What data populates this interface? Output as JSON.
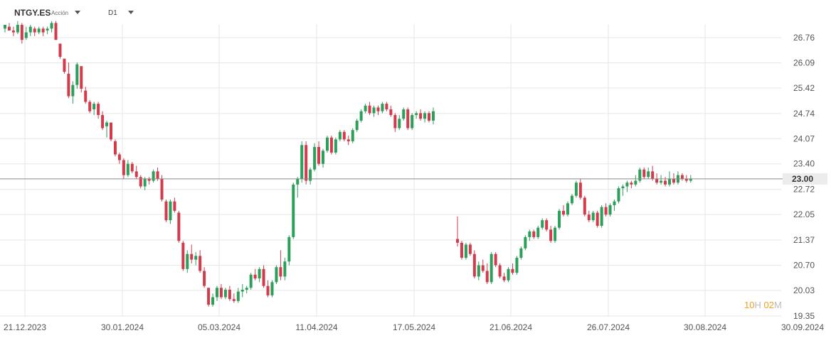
{
  "toolbar": {
    "symbol": "NTGY.ES",
    "symbol_type": "Acción",
    "timeframe": "D1"
  },
  "timer": {
    "hours": "10",
    "hours_unit": "H",
    "minutes": "02",
    "minutes_unit": "M"
  },
  "colors": {
    "up": "#2e9e5b",
    "down": "#d23b4c",
    "grid": "#e6e6e6",
    "price_line": "#8a8a8a",
    "price_tag_bg": "#ececec"
  },
  "chart_data": {
    "type": "candlestick",
    "timeframe": "D1",
    "current_price": 23.0,
    "ylim": [
      19.2,
      27.4
    ],
    "y_ticks": [
      "26.76",
      "26.09",
      "25.42",
      "24.74",
      "24.07",
      "23.40",
      "22.72",
      "22.05",
      "21.37",
      "20.70",
      "20.03",
      "19.35"
    ],
    "x_labels": [
      "21.12.2023",
      "30.01.2024",
      "05.03.2024",
      "11.04.2024",
      "17.05.2024",
      "21.06.2024",
      "26.07.2024",
      "30.08.2024",
      "30.09.2024"
    ],
    "candles": [
      [
        27.0,
        27.1,
        26.9,
        27.1
      ],
      [
        27.05,
        27.15,
        26.95,
        26.95
      ],
      [
        26.95,
        27.05,
        26.8,
        26.9
      ],
      [
        26.9,
        27.2,
        26.85,
        27.1
      ],
      [
        27.1,
        27.15,
        26.6,
        26.7
      ],
      [
        26.75,
        27.05,
        26.7,
        26.9
      ],
      [
        26.9,
        27.1,
        26.8,
        27.05
      ],
      [
        27.0,
        27.05,
        26.8,
        26.9
      ],
      [
        26.9,
        27.05,
        26.85,
        27.0
      ],
      [
        27.0,
        27.05,
        26.8,
        26.9
      ],
      [
        26.95,
        27.05,
        26.85,
        27.0
      ],
      [
        27.0,
        27.2,
        26.9,
        27.15
      ],
      [
        27.15,
        27.2,
        26.7,
        26.7
      ],
      [
        26.6,
        26.6,
        26.2,
        26.25
      ],
      [
        26.2,
        26.2,
        25.8,
        25.85
      ],
      [
        25.8,
        26.1,
        25.15,
        25.2
      ],
      [
        25.2,
        25.6,
        25.0,
        25.5
      ],
      [
        25.5,
        26.1,
        25.4,
        26.05
      ],
      [
        26.0,
        26.0,
        25.3,
        25.4
      ],
      [
        25.35,
        25.45,
        25.0,
        25.05
      ],
      [
        25.05,
        25.1,
        24.75,
        24.8
      ],
      [
        24.85,
        25.05,
        24.7,
        25.0
      ],
      [
        25.0,
        25.05,
        24.6,
        24.7
      ],
      [
        24.7,
        24.8,
        24.3,
        24.35
      ],
      [
        24.4,
        24.55,
        24.1,
        24.5
      ],
      [
        24.5,
        24.5,
        24.0,
        24.05
      ],
      [
        24.0,
        24.05,
        23.6,
        23.65
      ],
      [
        23.65,
        23.7,
        23.4,
        23.5
      ],
      [
        23.5,
        23.55,
        23.0,
        23.1
      ],
      [
        23.1,
        23.5,
        23.05,
        23.4
      ],
      [
        23.4,
        23.45,
        23.15,
        23.2
      ],
      [
        23.2,
        23.35,
        23.0,
        23.05
      ],
      [
        23.05,
        23.1,
        22.75,
        22.8
      ],
      [
        22.8,
        23.05,
        22.7,
        23.0
      ],
      [
        23.0,
        23.05,
        22.85,
        22.95
      ],
      [
        22.95,
        23.25,
        22.9,
        23.2
      ],
      [
        23.2,
        23.3,
        22.95,
        23.0
      ],
      [
        23.0,
        23.1,
        22.4,
        22.45
      ],
      [
        22.4,
        22.45,
        21.85,
        21.9
      ],
      [
        21.9,
        22.45,
        21.8,
        22.4
      ],
      [
        22.4,
        22.5,
        22.1,
        22.15
      ],
      [
        22.1,
        22.15,
        21.3,
        21.35
      ],
      [
        21.3,
        21.35,
        20.55,
        20.6
      ],
      [
        20.6,
        21.1,
        20.5,
        21.0
      ],
      [
        21.0,
        21.25,
        20.75,
        20.85
      ],
      [
        20.85,
        21.05,
        20.7,
        20.95
      ],
      [
        20.95,
        21.1,
        20.5,
        20.55
      ],
      [
        20.55,
        20.65,
        20.1,
        20.15
      ],
      [
        20.1,
        20.1,
        19.6,
        19.65
      ],
      [
        19.65,
        19.95,
        19.6,
        19.85
      ],
      [
        19.85,
        20.15,
        19.75,
        20.1
      ],
      [
        20.1,
        20.2,
        19.8,
        19.85
      ],
      [
        19.85,
        20.1,
        19.8,
        20.05
      ],
      [
        20.05,
        20.15,
        19.75,
        19.8
      ],
      [
        19.8,
        19.95,
        19.7,
        19.75
      ],
      [
        19.75,
        20.1,
        19.7,
        20.0
      ],
      [
        20.0,
        20.2,
        19.85,
        20.05
      ],
      [
        20.05,
        20.15,
        19.95,
        20.1
      ],
      [
        20.1,
        20.5,
        20.05,
        20.45
      ],
      [
        20.45,
        20.6,
        20.3,
        20.35
      ],
      [
        20.35,
        20.65,
        20.25,
        20.6
      ],
      [
        20.6,
        20.7,
        20.1,
        20.15
      ],
      [
        20.15,
        20.3,
        19.85,
        19.9
      ],
      [
        19.9,
        20.3,
        19.85,
        20.25
      ],
      [
        20.25,
        20.7,
        20.2,
        20.65
      ],
      [
        20.65,
        21.1,
        20.3,
        20.4
      ],
      [
        20.4,
        20.9,
        20.3,
        20.8
      ],
      [
        20.8,
        21.5,
        20.7,
        21.45
      ],
      [
        21.45,
        22.9,
        21.4,
        22.85
      ],
      [
        22.85,
        23.05,
        22.5,
        23.0
      ],
      [
        23.0,
        24.0,
        22.9,
        23.9
      ],
      [
        23.9,
        24.0,
        22.85,
        22.95
      ],
      [
        22.95,
        23.3,
        22.85,
        23.25
      ],
      [
        23.25,
        23.95,
        23.2,
        23.85
      ],
      [
        23.85,
        24.0,
        23.35,
        23.4
      ],
      [
        23.4,
        23.8,
        23.3,
        23.75
      ],
      [
        23.75,
        24.15,
        23.7,
        24.1
      ],
      [
        24.1,
        24.15,
        23.65,
        23.7
      ],
      [
        23.7,
        24.1,
        23.65,
        24.05
      ],
      [
        24.05,
        24.3,
        24.0,
        24.25
      ],
      [
        24.25,
        24.3,
        24.0,
        24.05
      ],
      [
        24.05,
        24.15,
        23.9,
        24.0
      ],
      [
        24.0,
        24.35,
        23.95,
        24.3
      ],
      [
        24.3,
        24.6,
        24.25,
        24.55
      ],
      [
        24.55,
        24.85,
        24.5,
        24.8
      ],
      [
        24.8,
        25.0,
        24.75,
        24.95
      ],
      [
        24.95,
        25.05,
        24.7,
        24.75
      ],
      [
        24.75,
        24.95,
        24.65,
        24.9
      ],
      [
        24.9,
        24.95,
        24.7,
        24.8
      ],
      [
        24.8,
        25.05,
        24.75,
        25.0
      ],
      [
        25.0,
        25.05,
        24.8,
        24.85
      ],
      [
        24.85,
        24.95,
        24.65,
        24.7
      ],
      [
        24.7,
        24.75,
        24.25,
        24.35
      ],
      [
        24.35,
        24.7,
        24.3,
        24.6
      ],
      [
        24.6,
        24.9,
        24.55,
        24.85
      ],
      [
        24.85,
        24.9,
        24.3,
        24.35
      ],
      [
        24.35,
        24.75,
        24.3,
        24.7
      ],
      [
        24.7,
        24.8,
        24.6,
        24.75
      ],
      [
        24.75,
        24.85,
        24.55,
        24.6
      ],
      [
        24.6,
        24.8,
        24.5,
        24.75
      ],
      [
        24.75,
        24.8,
        24.5,
        24.55
      ],
      [
        24.55,
        24.9,
        24.45,
        24.8
      ],
      [
        21.4,
        22.0,
        21.2,
        21.3
      ],
      [
        21.3,
        21.35,
        20.85,
        20.9
      ],
      [
        20.9,
        21.3,
        20.85,
        21.25
      ],
      [
        21.25,
        21.3,
        20.95,
        21.0
      ],
      [
        21.0,
        21.1,
        20.35,
        20.4
      ],
      [
        20.4,
        20.8,
        20.3,
        20.7
      ],
      [
        20.7,
        20.85,
        20.5,
        20.55
      ],
      [
        20.55,
        20.75,
        20.2,
        20.25
      ],
      [
        20.25,
        21.05,
        20.2,
        21.0
      ],
      [
        21.0,
        21.05,
        20.65,
        20.7
      ],
      [
        20.7,
        20.75,
        20.35,
        20.4
      ],
      [
        20.4,
        20.5,
        20.25,
        20.3
      ],
      [
        20.3,
        20.65,
        20.25,
        20.6
      ],
      [
        20.6,
        20.75,
        20.45,
        20.5
      ],
      [
        20.5,
        20.95,
        20.45,
        20.9
      ],
      [
        20.9,
        21.2,
        20.85,
        21.15
      ],
      [
        21.15,
        21.5,
        21.1,
        21.45
      ],
      [
        21.45,
        21.65,
        21.35,
        21.6
      ],
      [
        21.6,
        21.65,
        21.4,
        21.45
      ],
      [
        21.45,
        21.75,
        21.4,
        21.7
      ],
      [
        21.7,
        21.95,
        21.65,
        21.9
      ],
      [
        21.9,
        21.95,
        21.6,
        21.65
      ],
      [
        21.65,
        21.75,
        21.3,
        21.35
      ],
      [
        21.35,
        21.75,
        21.3,
        21.7
      ],
      [
        21.7,
        22.2,
        21.65,
        22.15
      ],
      [
        22.15,
        22.3,
        22.0,
        22.05
      ],
      [
        22.05,
        22.4,
        22.0,
        22.35
      ],
      [
        22.35,
        22.6,
        22.3,
        22.55
      ],
      [
        22.55,
        22.95,
        22.5,
        22.9
      ],
      [
        22.9,
        23.0,
        22.45,
        22.5
      ],
      [
        22.5,
        22.55,
        22.0,
        22.05
      ],
      [
        22.05,
        22.15,
        21.85,
        21.9
      ],
      [
        21.9,
        22.15,
        21.85,
        22.1
      ],
      [
        22.1,
        22.15,
        21.7,
        21.75
      ],
      [
        21.75,
        22.3,
        21.7,
        22.25
      ],
      [
        22.25,
        22.35,
        22.0,
        22.05
      ],
      [
        22.05,
        22.35,
        22.0,
        22.3
      ],
      [
        22.3,
        22.45,
        22.15,
        22.4
      ],
      [
        22.4,
        22.8,
        22.35,
        22.75
      ],
      [
        22.75,
        22.85,
        22.55,
        22.8
      ],
      [
        22.8,
        22.95,
        22.65,
        22.9
      ],
      [
        22.9,
        22.95,
        22.75,
        22.85
      ],
      [
        22.85,
        23.1,
        22.8,
        22.95
      ],
      [
        22.95,
        23.3,
        22.9,
        23.25
      ],
      [
        23.25,
        23.3,
        23.0,
        23.05
      ],
      [
        23.05,
        23.3,
        23.0,
        23.2
      ],
      [
        23.2,
        23.35,
        22.95,
        23.0
      ],
      [
        23.0,
        23.15,
        22.85,
        22.9
      ],
      [
        22.9,
        23.1,
        22.85,
        22.95
      ],
      [
        22.95,
        23.05,
        22.8,
        22.85
      ],
      [
        22.85,
        23.2,
        22.8,
        23.0
      ],
      [
        23.0,
        23.15,
        22.85,
        22.9
      ],
      [
        22.9,
        23.2,
        22.85,
        23.1
      ],
      [
        23.1,
        23.15,
        22.95,
        23.0
      ],
      [
        23.0,
        23.1,
        22.9,
        22.95
      ],
      [
        22.95,
        23.1,
        22.9,
        23.0
      ]
    ]
  }
}
